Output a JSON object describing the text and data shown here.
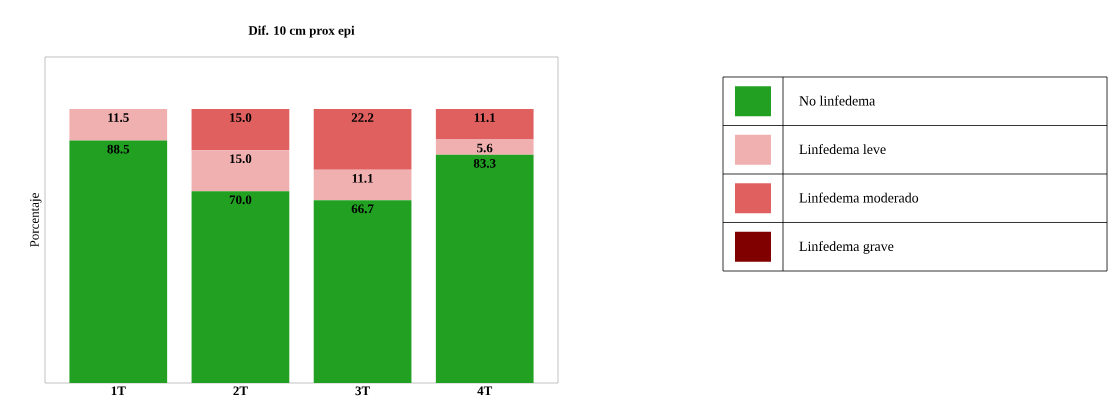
{
  "chart_data": {
    "type": "bar",
    "stacked": true,
    "title": "Dif. 10 cm prox epi",
    "ylabel": "Porcentaje",
    "categories": [
      "1T",
      "2T",
      "3T",
      "4T"
    ],
    "series": [
      {
        "name": "No linfedema",
        "color": "#22a022",
        "values": [
          88.5,
          70.0,
          66.7,
          83.3
        ],
        "value_labels": [
          "88.5",
          "70.0",
          "66.7",
          "83.3"
        ]
      },
      {
        "name": "Linfedema leve",
        "color": "#f0b0b0",
        "values": [
          11.5,
          15.0,
          11.1,
          5.6
        ],
        "value_labels": [
          "11.5",
          "15.0",
          "11.1",
          "5.6"
        ]
      },
      {
        "name": "Linfedema moderado",
        "color": "#e06060",
        "values": [
          null,
          15.0,
          22.2,
          11.1
        ],
        "value_labels": [
          null,
          "15.0",
          "22.2",
          "11.1"
        ]
      },
      {
        "name": "Linfedema grave",
        "color": "#800000",
        "values": [
          null,
          null,
          null,
          null
        ],
        "value_labels": [
          null,
          null,
          null,
          null
        ]
      }
    ],
    "legend": "right"
  }
}
